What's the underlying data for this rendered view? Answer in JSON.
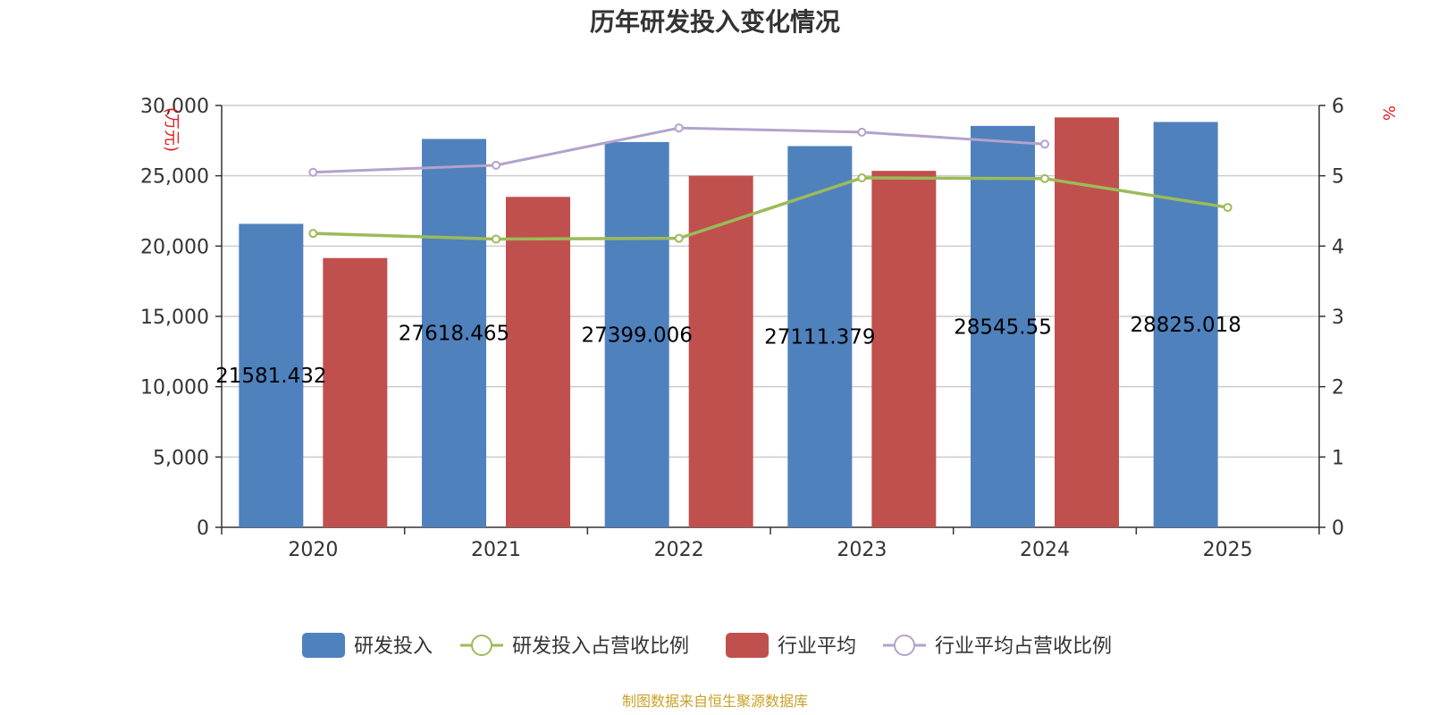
{
  "chart_data": {
    "type": "bar",
    "title": "历年研发投入变化情况",
    "categories": [
      "2020",
      "2021",
      "2022",
      "2023",
      "2024",
      "2025"
    ],
    "y_left": {
      "unit_label": "(万元)",
      "ylim": [
        0,
        30000
      ],
      "ticks": [
        "0",
        "5,000",
        "10,000",
        "15,000",
        "20,000",
        "25,000",
        "30,000"
      ]
    },
    "y_right": {
      "unit_label": "%",
      "ylim": [
        0,
        6
      ],
      "ticks": [
        "0",
        "1",
        "2",
        "3",
        "4",
        "5",
        "6"
      ]
    },
    "grid": true,
    "legend_position": "bottom",
    "series": [
      {
        "name": "研发投入",
        "kind": "bar",
        "axis": "left",
        "color": "#4f81bd",
        "values": [
          21581.432,
          27618.465,
          27399.006,
          27111.379,
          28545.55,
          28825.018
        ],
        "labels": [
          "21581.432",
          "27618.465",
          "27399.006",
          "27111.379",
          "28545.55",
          "28825.018"
        ]
      },
      {
        "name": "研发投入占营收比例",
        "kind": "line",
        "axis": "right",
        "color": "#9bbb59",
        "values": [
          4.18,
          4.1,
          4.11,
          4.97,
          4.96,
          4.55
        ]
      },
      {
        "name": "行业平均",
        "kind": "bar",
        "axis": "left",
        "color": "#c0504d",
        "values": [
          19150,
          23500,
          25000,
          25350,
          29150,
          null
        ]
      },
      {
        "name": "行业平均占营收比例",
        "kind": "line",
        "axis": "right",
        "color": "#b3a2cd",
        "values": [
          5.05,
          5.15,
          5.68,
          5.62,
          5.45,
          null
        ]
      }
    ],
    "source": "制图数据来自恒生聚源数据库"
  }
}
